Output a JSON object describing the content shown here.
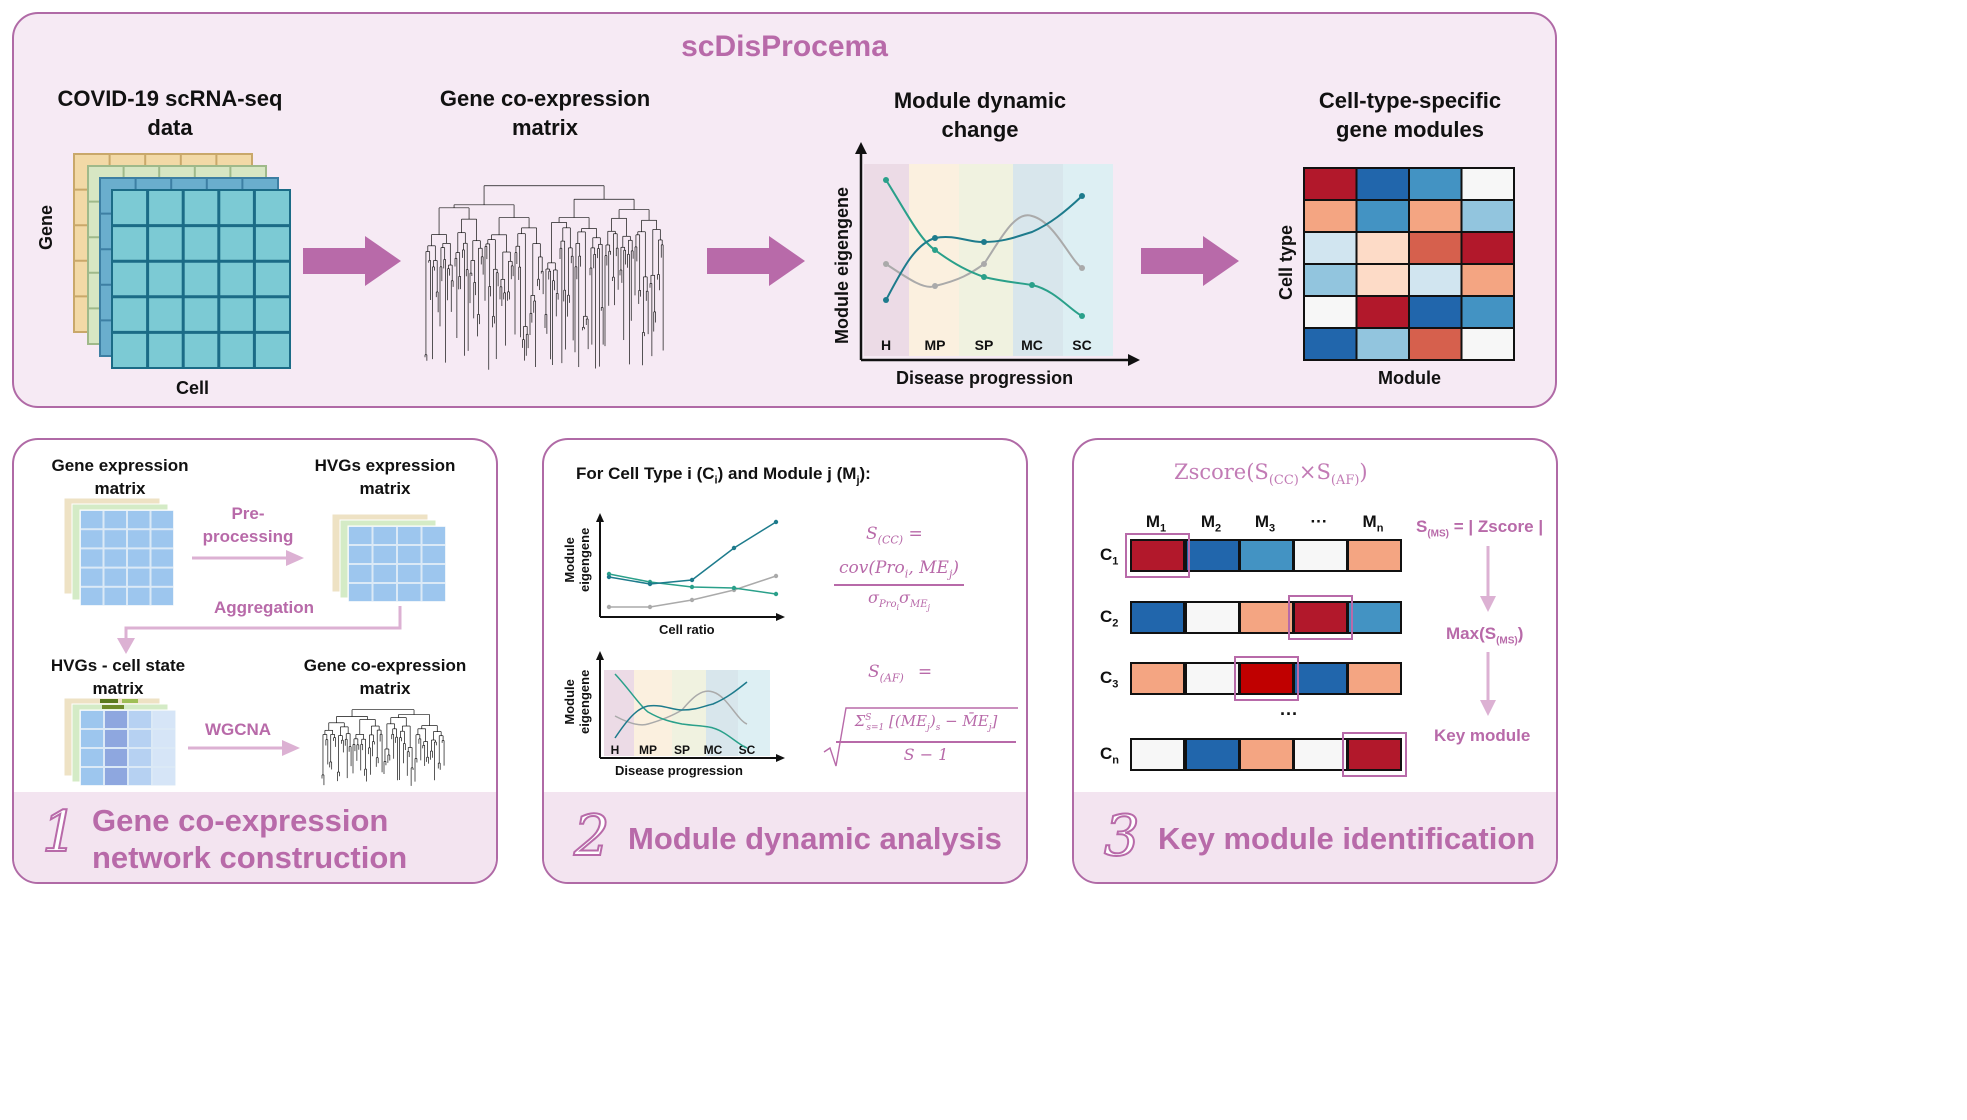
{
  "colors": {
    "accent": "#b86aa9",
    "arrow": "#b86aa9",
    "heat_dark_red": "#b2182b",
    "heat_red": "#d6604d",
    "heat_salmon": "#f4a582",
    "heat_peach": "#fddbc7",
    "heat_white": "#f7f7f7",
    "heat_pale_blue": "#d1e5f0",
    "heat_light_blue": "#92c5de",
    "heat_blue": "#4393c3",
    "heat_dark_blue": "#2166ac"
  },
  "top": {
    "title": "scDisProcema",
    "step1": {
      "title": "COVID-19 scRNA-seq\ndata",
      "y_label": "Gene",
      "x_label": "Cell"
    },
    "step2": {
      "title": "Gene co-expression\nmatrix"
    },
    "step3": {
      "title": "Module dynamic\nchange",
      "y_label": "Module eigengene",
      "x_label": "Disease progression",
      "stages": [
        "H",
        "MP",
        "SP",
        "MC",
        "SC"
      ]
    },
    "step4": {
      "title": "Cell-type-specific\ngene modules",
      "y_label": "Cell type",
      "x_label": "Module",
      "heatmap": [
        [
          "heat_dark_red",
          "heat_dark_blue",
          "heat_blue",
          "heat_white"
        ],
        [
          "heat_salmon",
          "heat_blue",
          "heat_salmon",
          "heat_light_blue"
        ],
        [
          "heat_pale_blue",
          "heat_peach",
          "heat_red",
          "heat_dark_red"
        ],
        [
          "heat_light_blue",
          "heat_peach",
          "heat_pale_blue",
          "heat_salmon"
        ],
        [
          "heat_white",
          "heat_dark_red",
          "heat_dark_blue",
          "heat_blue"
        ],
        [
          "heat_dark_blue",
          "heat_light_blue",
          "heat_red",
          "heat_white"
        ]
      ]
    }
  },
  "panel1": {
    "gene_expr": "Gene expression\nmatrix",
    "hvg_expr": "HVGs expression\nmatrix",
    "preprocessing": "Pre-\nprocessing",
    "aggregation": "Aggregation",
    "hvg_cell": "HVGs - cell state\nmatrix",
    "wgcna": "WGCNA",
    "coexpr": "Gene co-expression\nmatrix",
    "number": "1",
    "footer": "Gene co-expression\nnetwork construction"
  },
  "panel2": {
    "heading": "For Cell Type i (C",
    "heading_sub_i": "i",
    "heading_mid": ") and Module j (M",
    "heading_sub_j": "j",
    "heading_end": "):",
    "chart1_ylabel": "Module\neigengene",
    "chart1_xlabel": "Cell ratio",
    "chart2_ylabel": "Module\neigengene",
    "chart2_xlabel": "Disease progression",
    "stages": [
      "H",
      "MP",
      "SP",
      "MC",
      "SC"
    ],
    "scc_label": "S",
    "scc_sub": "(CC)",
    "scc_eq": " =",
    "scc_num": "cov(Pro",
    "scc_num_i": "i",
    "scc_num_mid": ", ME",
    "scc_num_j": "j",
    "scc_num_end": ")",
    "scc_den": "σ",
    "scc_den_sub1": "Pro",
    "scc_den_sub1i": "i",
    "scc_den_sigma2": "σ",
    "scc_den_sub2": "ME",
    "scc_den_sub2j": "j",
    "saf_label": "S",
    "saf_sub": "(AF)",
    "saf_eq": "=",
    "saf_num": "Σ",
    "saf_num_sup": "S",
    "saf_num_sub": "s=1",
    "saf_num_expr": "[(ME",
    "saf_num_j": "j",
    "saf_num_s": ")",
    "saf_num_s_sub": "s",
    "saf_num_minus": " − M̄E",
    "saf_num_j2": "j",
    "saf_num_close": "]",
    "saf_den": "S − 1",
    "number": "2",
    "footer": "Module dynamic analysis"
  },
  "panel3": {
    "zscore_title": "Zscore(S",
    "zscore_sub1": "(CC)",
    "zscore_times": "×S",
    "zscore_sub2": "(AF)",
    "zscore_close": ")",
    "modules": [
      {
        "m": "M",
        "s": "1"
      },
      {
        "m": "M",
        "s": "2"
      },
      {
        "m": "M",
        "s": "3"
      },
      {
        "m": "···",
        "s": ""
      },
      {
        "m": "M",
        "s": "n"
      }
    ],
    "rows": [
      {
        "c": "C",
        "s": "1",
        "cells": [
          "heat_dark_red",
          "heat_dark_blue",
          "heat_blue",
          "heat_white",
          "heat_salmon"
        ],
        "hl": 0
      },
      {
        "c": "C",
        "s": "2",
        "cells": [
          "heat_dark_blue",
          "heat_white",
          "heat_salmon",
          "heat_dark_red",
          "heat_blue"
        ],
        "hl": 3
      },
      {
        "c": "C",
        "s": "3",
        "cells": [
          "heat_salmon",
          "heat_white",
          "pure_red",
          "heat_dark_blue",
          "heat_salmon"
        ],
        "hl": 2
      },
      {
        "c": "C",
        "s": "n",
        "cells": [
          "heat_white",
          "heat_dark_blue",
          "heat_salmon",
          "heat_white",
          "heat_dark_red"
        ],
        "hl": 4
      }
    ],
    "dots": "···",
    "sms_label": "S",
    "sms_sub": "(MS)",
    "sms_eq": " = | Zscore |",
    "max_label": "Max(S",
    "max_sub": "(MS)",
    "max_close": ")",
    "key_module": "Key module",
    "number": "3",
    "footer": "Key module identification"
  }
}
